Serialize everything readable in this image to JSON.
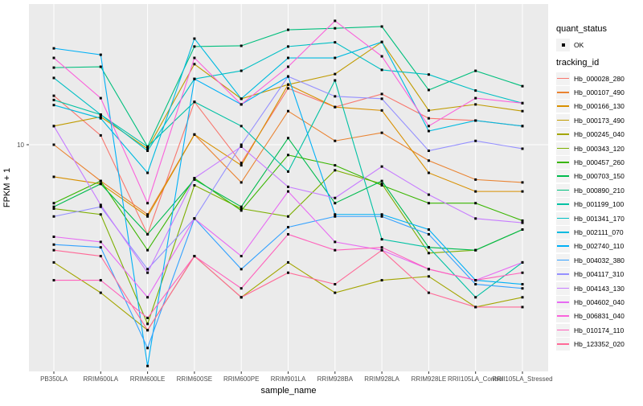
{
  "legend": {
    "quant_status_title": "quant_status",
    "quant_status_items": [
      {
        "label": "OK",
        "marker": "black-square"
      }
    ],
    "tracking_id_title": "tracking_id"
  },
  "chart_data": {
    "type": "line",
    "title": "",
    "xlabel": "sample_name",
    "ylabel": "FPKM + 1",
    "y_scale": "log10",
    "y_ticks": [
      10
    ],
    "grid": true,
    "legend_position": "right",
    "panel_bg": "#EBEBEB",
    "grid_color": "#FFFFFF",
    "tick_color": "#333333",
    "axis_text_color": "#4D4D4D",
    "point_marker": {
      "shape": "square",
      "color": "#000000",
      "size": 3
    },
    "categories": [
      "PB350LA",
      "RRIM600LA",
      "RRIM600LE",
      "RRIM600SE",
      "RRIM600PE",
      "RRIM901LA",
      "RRIM928BA",
      "RRIM928LA",
      "RRIM928LE",
      "RRII105LA_Control",
      "RRII105LA_Stressed"
    ],
    "series": [
      {
        "name": "Hb_000028_280",
        "color": "#F8766D",
        "values": [
          16.5,
          11.0,
          4.0,
          15.5,
          8.3,
          17.8,
          14.7,
          16.8,
          13.1,
          12.8,
          12.1
        ]
      },
      {
        "name": "Hb_000107_490",
        "color": "#EA8331",
        "values": [
          10.0,
          6.9,
          4.9,
          11.1,
          6.8,
          14.1,
          10.4,
          11.3,
          8.5,
          7.0,
          6.8
        ]
      },
      {
        "name": "Hb_000166_130",
        "color": "#D89000",
        "values": [
          7.2,
          6.7,
          4.8,
          11.1,
          8.1,
          18.5,
          14.7,
          14.2,
          7.5,
          6.2,
          6.2
        ]
      },
      {
        "name": "Hb_000173_490",
        "color": "#C09B00",
        "values": [
          12.1,
          13.3,
          9.6,
          22.8,
          16.0,
          18.5,
          20.6,
          28.6,
          14.2,
          15.1,
          14.1
        ]
      },
      {
        "name": "Hb_000245_040",
        "color": "#A3A500",
        "values": [
          3.0,
          2.2,
          1.5,
          3.2,
          2.1,
          3.0,
          2.2,
          2.5,
          2.6,
          1.9,
          2.1
        ]
      },
      {
        "name": "Hb_000343_120",
        "color": "#7CAE00",
        "values": [
          5.2,
          4.9,
          1.6,
          6.6,
          5.2,
          4.8,
          7.7,
          6.7,
          3.3,
          3.4,
          4.2
        ]
      },
      {
        "name": "Hb_000457_260",
        "color": "#39B600",
        "values": [
          5.5,
          6.9,
          3.4,
          7.1,
          5.1,
          9.0,
          8.1,
          6.6,
          5.5,
          5.5,
          4.6
        ]
      },
      {
        "name": "Hb_000703_150",
        "color": "#00BB4E",
        "values": [
          5.3,
          6.7,
          4.0,
          7.0,
          5.3,
          10.7,
          5.5,
          6.9,
          3.5,
          3.4,
          4.2
        ]
      },
      {
        "name": "Hb_000890_210",
        "color": "#00BF7D",
        "values": [
          22.0,
          22.2,
          9.8,
          27.3,
          27.5,
          32.4,
          32.9,
          33.5,
          17.5,
          21.3,
          18.2
        ]
      },
      {
        "name": "Hb_001199_100",
        "color": "#00C1A3",
        "values": [
          15.8,
          13.6,
          9.8,
          15.5,
          12.1,
          7.6,
          19.3,
          3.8,
          3.5,
          2.1,
          3.0
        ]
      },
      {
        "name": "Hb_001341_170",
        "color": "#00BFC4",
        "values": [
          19.8,
          13.6,
          9.4,
          19.6,
          21.3,
          27.3,
          28.5,
          21.5,
          20.5,
          17.4,
          15.3
        ]
      },
      {
        "name": "Hb_002111_070",
        "color": "#00BAE0",
        "values": [
          15.0,
          13.1,
          7.5,
          29.6,
          16.0,
          24.3,
          24.3,
          28.6,
          11.5,
          12.8,
          12.1
        ]
      },
      {
        "name": "Hb_002740_110",
        "color": "#00B0F6",
        "values": [
          26.8,
          25.1,
          1.04,
          19.6,
          15.1,
          20.1,
          4.9,
          4.9,
          4.2,
          2.5,
          2.4
        ]
      },
      {
        "name": "Hb_004032_380",
        "color": "#35A2FF",
        "values": [
          3.6,
          3.5,
          1.25,
          4.7,
          2.8,
          4.3,
          4.8,
          4.8,
          4.0,
          2.4,
          2.3
        ]
      },
      {
        "name": "Hb_004117_310",
        "color": "#9590FF",
        "values": [
          4.8,
          5.3,
          2.8,
          4.7,
          10.0,
          20.1,
          16.4,
          16.0,
          9.4,
          10.4,
          9.6
        ]
      },
      {
        "name": "Hb_004143_130",
        "color": "#C77CFF",
        "values": [
          12.1,
          5.4,
          2.7,
          7.1,
          9.8,
          6.5,
          5.8,
          8.0,
          6.0,
          4.7,
          4.5
        ]
      },
      {
        "name": "Hb_004602_040",
        "color": "#E76BF3",
        "values": [
          3.9,
          3.7,
          2.1,
          4.7,
          3.2,
          6.2,
          3.7,
          3.4,
          2.8,
          2.5,
          3.0
        ]
      },
      {
        "name": "Hb_006831_040",
        "color": "#FA62DB",
        "values": [
          24.3,
          16.1,
          5.5,
          24.3,
          15.1,
          22.2,
          35.5,
          24.7,
          12.1,
          16.1,
          15.3
        ]
      },
      {
        "name": "Hb_010174_110",
        "color": "#FF62BC",
        "values": [
          2.5,
          2.5,
          1.7,
          3.2,
          2.3,
          4.0,
          3.4,
          3.5,
          2.8,
          2.5,
          2.7
        ]
      },
      {
        "name": "Hb_123352_020",
        "color": "#FF6A98",
        "values": [
          3.4,
          3.2,
          1.5,
          3.2,
          2.1,
          2.7,
          2.4,
          3.4,
          2.2,
          1.9,
          1.9
        ]
      }
    ]
  }
}
